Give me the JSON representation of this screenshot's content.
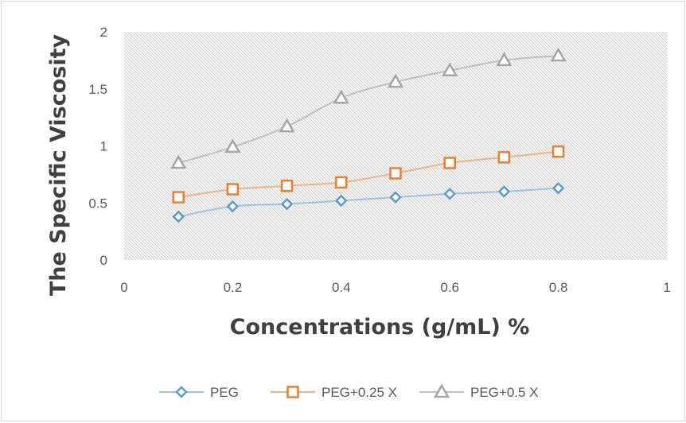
{
  "chart_data": {
    "type": "line",
    "title": "",
    "xlabel": "Concentrations (g/mL) %",
    "ylabel": "The Specific Viscosity",
    "xlim": [
      0,
      1
    ],
    "ylim": [
      0,
      2
    ],
    "x_ticks": [
      "0",
      "0.2",
      "0.4",
      "0.6",
      "0.8",
      "1"
    ],
    "y_ticks": [
      "0",
      "0.5",
      "1",
      "1.5",
      "2"
    ],
    "grid": false,
    "plot_background": "diagonal hatch",
    "legend_position": "bottom",
    "x": [
      0.1,
      0.2,
      0.3,
      0.4,
      0.5,
      0.6,
      0.7,
      0.8
    ],
    "series": [
      {
        "name": "PEG",
        "marker": "diamond",
        "color": "#5b9bd5",
        "line_color": "#9dc3e6",
        "values": [
          0.38,
          0.47,
          0.49,
          0.52,
          0.55,
          0.58,
          0.6,
          0.63
        ]
      },
      {
        "name": "PEG+0.25 X",
        "marker": "square",
        "color": "#ed7d31",
        "line_color": "#f4b183",
        "values": [
          0.55,
          0.62,
          0.65,
          0.68,
          0.76,
          0.85,
          0.9,
          0.95
        ]
      },
      {
        "name": "PEG+0.5 X",
        "marker": "triangle",
        "color": "#a5a5a5",
        "line_color": "#bfbfbf",
        "values": [
          0.85,
          0.99,
          1.17,
          1.42,
          1.56,
          1.66,
          1.75,
          1.79
        ]
      }
    ]
  }
}
